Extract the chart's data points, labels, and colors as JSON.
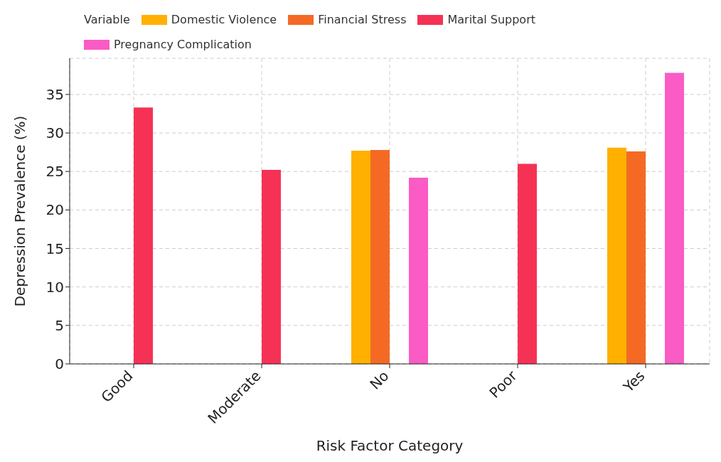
{
  "chart_data": {
    "type": "bar",
    "xlabel": "Risk Factor Category",
    "ylabel": "Depression Prevalence (%)",
    "legend_title": "Variable",
    "categories": [
      "Good",
      "Moderate",
      "No",
      "Poor",
      "Yes"
    ],
    "series": [
      {
        "name": "Domestic Violence",
        "color": "#ffb000",
        "values": [
          null,
          null,
          27.7,
          null,
          28.1
        ]
      },
      {
        "name": "Financial Stress",
        "color": "#f46a25",
        "values": [
          null,
          null,
          27.8,
          null,
          27.6
        ]
      },
      {
        "name": "Marital Support",
        "color": "#f53255",
        "values": [
          33.3,
          25.2,
          null,
          26.0,
          null
        ]
      },
      {
        "name": "Pregnancy Complication",
        "color": "#fa5bc5",
        "values": [
          null,
          null,
          24.2,
          null,
          37.8
        ]
      }
    ],
    "ylim": [
      0,
      39.7
    ],
    "yticks": [
      0,
      5,
      10,
      15,
      20,
      25,
      30,
      35
    ],
    "grid": true,
    "legend": "top left"
  }
}
